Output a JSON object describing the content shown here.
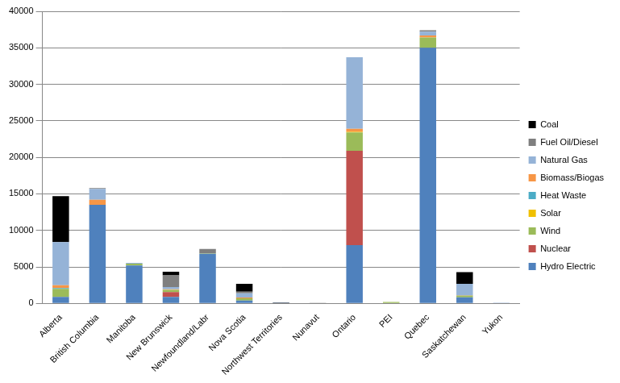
{
  "chart_data": {
    "type": "bar",
    "stacked": true,
    "grid": true,
    "legend": "right",
    "categories": [
      "Alberta",
      "British Columbia",
      "Manitoba",
      "New Brunswick",
      "Newfoundland/Labr",
      "Nova Scotia",
      "Northwest Territories",
      "Nunavut",
      "Ontario",
      "PEI",
      "Quebec",
      "Saskatchewan",
      "Yukon"
    ],
    "ylim": [
      0,
      40000
    ],
    "yticks": [
      0,
      5000,
      10000,
      15000,
      20000,
      25000,
      30000,
      35000,
      40000
    ],
    "series": [
      {
        "name": "Hydro Electric",
        "color": "#4f81bd",
        "values": [
          900,
          13500,
          5200,
          900,
          6800,
          400,
          50,
          0,
          8000,
          0,
          35000,
          850,
          80
        ]
      },
      {
        "name": "Nuclear",
        "color": "#c0504d",
        "values": [
          0,
          0,
          0,
          650,
          0,
          0,
          0,
          0,
          12900,
          0,
          0,
          0,
          0
        ]
      },
      {
        "name": "Wind",
        "color": "#9bbb59",
        "values": [
          1100,
          0,
          250,
          300,
          50,
          300,
          0,
          0,
          2500,
          200,
          1400,
          200,
          0
        ]
      },
      {
        "name": "Solar",
        "color": "#f0c000",
        "values": [
          0,
          0,
          0,
          0,
          0,
          0,
          0,
          0,
          100,
          0,
          0,
          0,
          0
        ]
      },
      {
        "name": "Heat Waste",
        "color": "#4bacc6",
        "values": [
          100,
          0,
          0,
          0,
          0,
          0,
          0,
          0,
          0,
          0,
          0,
          50,
          0
        ]
      },
      {
        "name": "Biomass/Biogas",
        "color": "#f79646",
        "values": [
          400,
          700,
          0,
          100,
          0,
          100,
          0,
          0,
          400,
          0,
          300,
          50,
          0
        ]
      },
      {
        "name": "Natural Gas",
        "color": "#95b3d7",
        "values": [
          5900,
          1500,
          100,
          300,
          0,
          600,
          0,
          0,
          9800,
          0,
          500,
          1550,
          0
        ]
      },
      {
        "name": "Fuel Oil/Diesel",
        "color": "#7f7f7f",
        "values": [
          0,
          100,
          0,
          1600,
          600,
          200,
          100,
          50,
          0,
          0,
          200,
          0,
          0
        ]
      },
      {
        "name": "Coal",
        "color": "#000000",
        "values": [
          6300,
          0,
          0,
          500,
          0,
          1100,
          0,
          0,
          0,
          0,
          0,
          1600,
          0
        ]
      }
    ]
  }
}
